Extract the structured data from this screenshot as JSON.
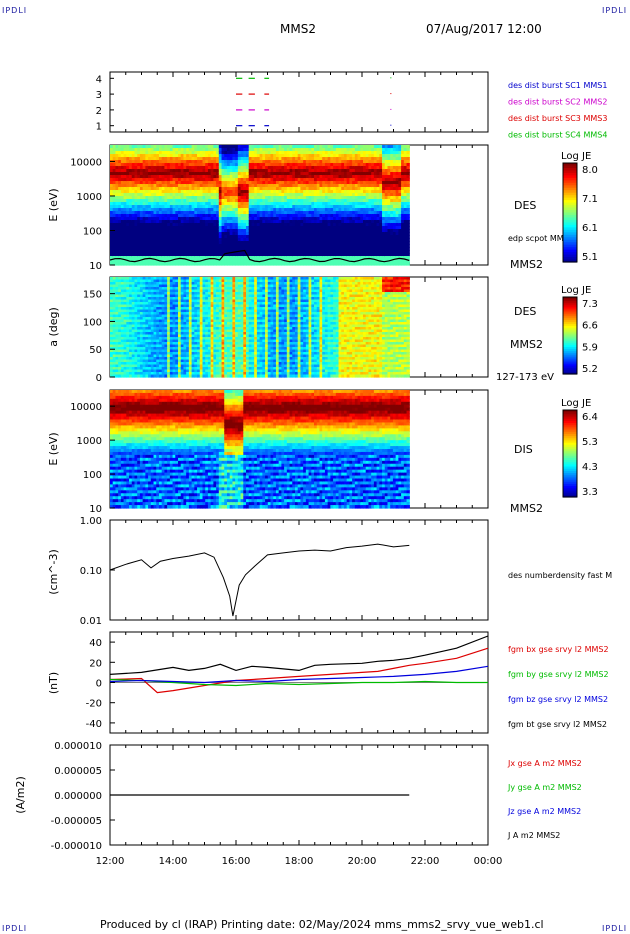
{
  "corner": {
    "tl": "IPDLI",
    "tr": "IPDLI",
    "bl": "IPDLI",
    "br": "IPDLI"
  },
  "header": {
    "title": "MMS2",
    "datetime": "07/Aug/2017 12:00"
  },
  "footer": {
    "text": "Produced by cl (IRAP)   Printing date: 02/May/2024   mms_mms2_srvy_vue_web1.cl"
  },
  "colors": {
    "mms1": "#0000cc",
    "mms2": "#cc00cc",
    "mms3": "#dd0000",
    "mms4": "#00bb00",
    "bx": "#dd0000",
    "by": "#00bb00",
    "bz": "#0000dd",
    "bt": "#000000"
  },
  "chart_data": [
    {
      "type": "scatter",
      "title": "burst availability",
      "yticks": [
        "1",
        "2",
        "3",
        "4"
      ],
      "legend": [
        {
          "name": "des dist burst SC1 MMS1",
          "color": "#0000cc"
        },
        {
          "name": "des dist burst SC2 MMS2",
          "color": "#cc00cc"
        },
        {
          "name": "des dist burst SC3 MMS3",
          "color": "#dd0000"
        },
        {
          "name": "des dist burst SC4 MMS4",
          "color": "#00bb00"
        }
      ],
      "intervals_hours": [
        [
          16.0,
          16.2
        ],
        [
          16.4,
          16.6
        ],
        [
          16.9,
          17.05
        ]
      ],
      "dots_hours": [
        20.9
      ]
    },
    {
      "type": "heatmap",
      "ylabel": "E (eV)",
      "yticks": [
        "10",
        "100",
        "1000",
        "10000"
      ],
      "instrument": "DES",
      "spacecraft": "MMS2",
      "colorbar": {
        "title": "Log JE",
        "ticks": [
          "8.0",
          "7.1",
          "6.1",
          "5.1"
        ]
      },
      "overlay": "edp scpot MMS2"
    },
    {
      "type": "heatmap",
      "ylabel": "a (deg)",
      "yticks": [
        "0",
        "50",
        "100",
        "150"
      ],
      "instrument": "DES",
      "spacecraft": "MMS2",
      "colorbar": {
        "title": "Log JE",
        "ticks": [
          "7.3",
          "6.6",
          "5.9",
          "5.2"
        ]
      },
      "energy_range": "127-173 eV"
    },
    {
      "type": "heatmap",
      "ylabel": "E (eV)",
      "yticks": [
        "10",
        "100",
        "1000",
        "10000"
      ],
      "instrument": "DIS",
      "spacecraft": "MMS2",
      "colorbar": {
        "title": "Log JE",
        "ticks": [
          "6.4",
          "5.3",
          "4.3",
          "3.3"
        ]
      }
    },
    {
      "type": "line",
      "ylabel": "(cm^-3)",
      "yticks": [
        "0.01",
        "0.10",
        "1.00"
      ],
      "series": [
        {
          "name": "des numberdensity fast M",
          "color": "#000000",
          "x": [
            12.0,
            12.5,
            13.0,
            13.3,
            13.6,
            14.0,
            14.5,
            15.0,
            15.3,
            15.6,
            15.8,
            15.9,
            16.1,
            16.3,
            16.6,
            17.0,
            17.5,
            18.0,
            18.5,
            19.0,
            19.5,
            20.0,
            20.5,
            21.0,
            21.5
          ],
          "y": [
            0.1,
            0.13,
            0.16,
            0.11,
            0.15,
            0.17,
            0.19,
            0.22,
            0.18,
            0.07,
            0.03,
            0.012,
            0.05,
            0.08,
            0.12,
            0.2,
            0.22,
            0.24,
            0.25,
            0.24,
            0.28,
            0.3,
            0.33,
            0.29,
            0.31
          ]
        }
      ]
    },
    {
      "type": "line",
      "ylabel": "(nT)",
      "yticks": [
        "-40",
        "-20",
        "0",
        "20",
        "40"
      ],
      "ylim": [
        -50,
        50
      ],
      "series": [
        {
          "name": "fgm bx gse srvy l2 MMS2",
          "color": "#dd0000",
          "x": [
            12.0,
            13.0,
            13.5,
            14.0,
            15.0,
            16.0,
            17.0,
            18.0,
            19.0,
            20.0,
            20.5,
            21.0,
            21.5,
            22.0,
            23.0,
            24.0
          ],
          "y": [
            3,
            4,
            -10,
            -8,
            -3,
            2,
            4,
            6,
            8,
            10,
            11,
            14,
            17,
            19,
            24,
            34
          ]
        },
        {
          "name": "fgm by gse srvy l2 MMS2",
          "color": "#00bb00",
          "x": [
            12.0,
            13.0,
            14.0,
            15.0,
            16.0,
            17.0,
            18.0,
            19.0,
            20.0,
            21.0,
            22.0,
            23.0,
            24.0
          ],
          "y": [
            3,
            2,
            0,
            -2,
            -3,
            -1,
            -2,
            -1,
            0,
            0,
            1,
            0,
            0
          ]
        },
        {
          "name": "fgm bz gse srvy l2 MMS2",
          "color": "#0000dd",
          "x": [
            12.0,
            13.0,
            14.0,
            15.0,
            16.0,
            17.0,
            18.0,
            19.0,
            20.0,
            21.0,
            22.0,
            23.0,
            24.0
          ],
          "y": [
            1,
            2,
            1,
            0,
            2,
            1,
            3,
            4,
            5,
            6,
            8,
            11,
            16
          ]
        },
        {
          "name": "fgm bt gse srvy l2 MMS2",
          "color": "#000000",
          "x": [
            12.0,
            13.0,
            14.0,
            14.5,
            15.0,
            15.5,
            16.0,
            16.5,
            17.0,
            18.0,
            18.5,
            19.0,
            20.0,
            20.5,
            21.0,
            21.5,
            22.0,
            23.0,
            24.0
          ],
          "y": [
            8,
            10,
            15,
            12,
            14,
            18,
            12,
            16,
            15,
            12,
            17,
            18,
            19,
            21,
            22,
            24,
            27,
            34,
            46
          ]
        }
      ]
    },
    {
      "type": "line",
      "ylabel": "(A/m2)",
      "yticks": [
        "-0.000010",
        "-0.000005",
        "0.000000",
        "0.000005",
        "0.000010"
      ],
      "ylim": [
        -1e-05,
        1e-05
      ],
      "series": [
        {
          "name": "Jx gse A m2 MMS2",
          "color": "#dd0000"
        },
        {
          "name": "Jy gse A m2 MMS2",
          "color": "#00bb00"
        },
        {
          "name": "Jz gse A m2 MMS2",
          "color": "#0000dd"
        },
        {
          "name": "J A m2 MMS2",
          "color": "#000000",
          "x": [
            12.0,
            21.5
          ],
          "y": [
            0,
            0
          ]
        }
      ]
    }
  ],
  "xaxis": {
    "ticks": [
      "12:00",
      "14:00",
      "16:00",
      "18:00",
      "20:00",
      "22:00",
      "00:00"
    ],
    "range_hours": [
      12,
      24
    ]
  }
}
